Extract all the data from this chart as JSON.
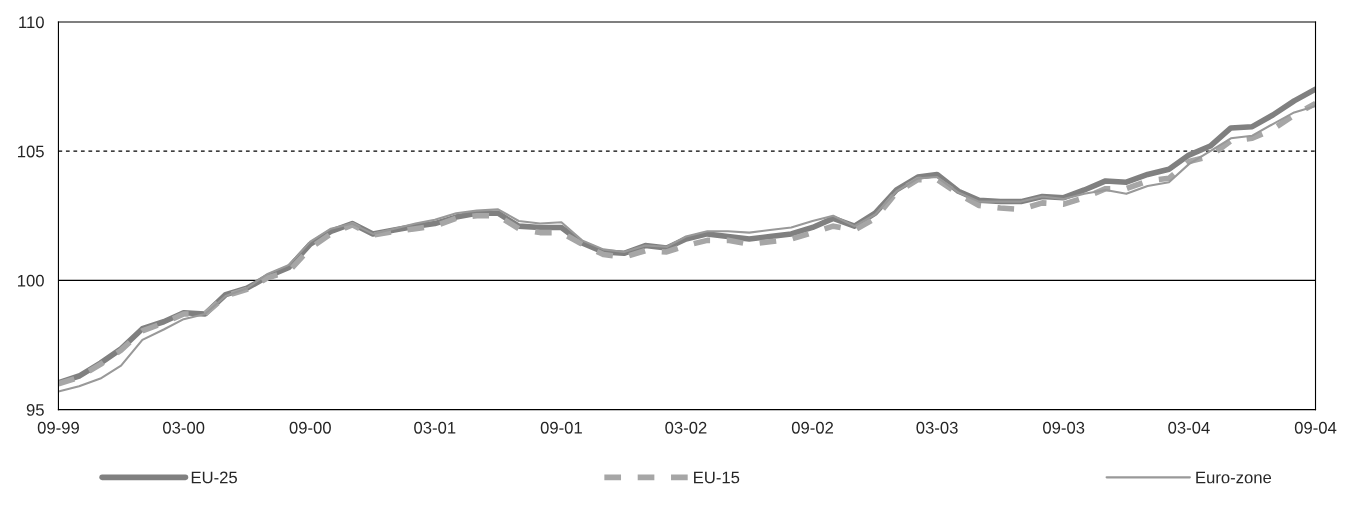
{
  "chart_data": {
    "type": "line",
    "x": [
      "1999-09",
      "1999-10",
      "1999-11",
      "1999-12",
      "2000-01",
      "2000-02",
      "2000-03",
      "2000-04",
      "2000-05",
      "2000-06",
      "2000-07",
      "2000-08",
      "2000-09",
      "2000-10",
      "2000-11",
      "2000-12",
      "2001-01",
      "2001-02",
      "2001-03",
      "2001-04",
      "2001-05",
      "2001-06",
      "2001-07",
      "2001-08",
      "2001-09",
      "2001-10",
      "2001-11",
      "2001-12",
      "2002-01",
      "2002-02",
      "2002-03",
      "2002-04",
      "2002-05",
      "2002-06",
      "2002-07",
      "2002-08",
      "2002-09",
      "2002-10",
      "2002-11",
      "2002-12",
      "2003-01",
      "2003-02",
      "2003-03",
      "2003-04",
      "2003-05",
      "2003-06",
      "2003-07",
      "2003-08",
      "2003-09",
      "2003-10",
      "2003-11",
      "2003-12",
      "2004-01",
      "2004-02",
      "2004-03",
      "2004-04",
      "2004-05",
      "2004-06",
      "2004-07",
      "2004-08",
      "2004-09"
    ],
    "series": [
      {
        "name": "EU-25",
        "color": "#808080",
        "line_style": "solid",
        "values": [
          96.04,
          96.3,
          96.8,
          97.35,
          98.13,
          98.4,
          98.75,
          98.7,
          99.45,
          99.7,
          100.15,
          100.5,
          101.4,
          101.9,
          102.2,
          101.8,
          101.95,
          102.1,
          102.2,
          102.45,
          102.6,
          102.6,
          102.1,
          102.05,
          102.05,
          101.45,
          101.1,
          101.05,
          101.35,
          101.25,
          101.6,
          101.8,
          101.7,
          101.6,
          101.7,
          101.8,
          102.05,
          102.4,
          102.1,
          102.6,
          103.5,
          104.0,
          104.1,
          103.45,
          103.1,
          103.05,
          103.05,
          103.25,
          103.2,
          103.5,
          103.85,
          103.8,
          104.1,
          104.3,
          104.85,
          105.2,
          105.9,
          105.95,
          106.4,
          106.95,
          107.4
        ]
      },
      {
        "name": "EU-15",
        "color": "#a6a6a6",
        "line_style": "dashed",
        "values": [
          96.0,
          96.25,
          96.75,
          97.3,
          98.05,
          98.35,
          98.7,
          98.7,
          99.4,
          99.65,
          100.1,
          100.35,
          101.25,
          101.8,
          102.15,
          101.75,
          101.9,
          102.0,
          102.1,
          102.4,
          102.5,
          102.5,
          102.0,
          101.85,
          101.85,
          101.4,
          101.0,
          100.9,
          101.15,
          101.1,
          101.35,
          101.55,
          101.55,
          101.4,
          101.5,
          101.6,
          101.85,
          102.1,
          101.95,
          102.4,
          103.4,
          103.9,
          103.9,
          103.35,
          102.9,
          102.8,
          102.75,
          103.0,
          102.95,
          103.2,
          103.55,
          103.55,
          103.85,
          103.95,
          104.6,
          104.8,
          105.4,
          105.5,
          105.85,
          106.4,
          106.85
        ]
      },
      {
        "name": "Euro-zone",
        "color": "#999999",
        "line_style": "solid",
        "values": [
          95.7,
          95.9,
          96.2,
          96.7,
          97.7,
          98.1,
          98.5,
          98.7,
          99.4,
          99.7,
          100.25,
          100.6,
          101.5,
          102.0,
          102.2,
          101.8,
          102.0,
          102.2,
          102.35,
          102.6,
          102.7,
          102.75,
          102.3,
          102.2,
          102.25,
          101.55,
          101.2,
          101.1,
          101.35,
          101.3,
          101.7,
          101.9,
          101.9,
          101.85,
          101.95,
          102.05,
          102.3,
          102.5,
          102.1,
          102.55,
          103.45,
          103.95,
          104.0,
          103.4,
          103.05,
          103.05,
          103.05,
          103.25,
          103.15,
          103.35,
          103.5,
          103.35,
          103.65,
          103.8,
          104.5,
          105.0,
          105.5,
          105.6,
          106.05,
          106.5,
          106.75
        ]
      }
    ],
    "xlim": [
      "1999-09",
      "2004-09"
    ],
    "xticks": [
      {
        "value": "1999-09",
        "label": "09-99"
      },
      {
        "value": "2000-03",
        "label": "03-00"
      },
      {
        "value": "2000-09",
        "label": "09-00"
      },
      {
        "value": "2001-03",
        "label": "03-01"
      },
      {
        "value": "2001-09",
        "label": "09-01"
      },
      {
        "value": "2002-03",
        "label": "03-02"
      },
      {
        "value": "2002-09",
        "label": "09-02"
      },
      {
        "value": "2003-03",
        "label": "03-03"
      },
      {
        "value": "2003-09",
        "label": "09-03"
      },
      {
        "value": "2004-03",
        "label": "03-04"
      },
      {
        "value": "2004-09",
        "label": "09-04"
      }
    ],
    "ylim": [
      95,
      110
    ],
    "yticks": [
      95,
      100,
      105,
      110
    ],
    "ref_lines": [
      {
        "axis": "y",
        "value": 100,
        "color": "#000000",
        "line_style": "solid"
      },
      {
        "axis": "y",
        "value": 105,
        "color": "#000000",
        "line_style": "dashed"
      }
    ],
    "grid": false,
    "legend": "bottom",
    "marker": "none"
  }
}
